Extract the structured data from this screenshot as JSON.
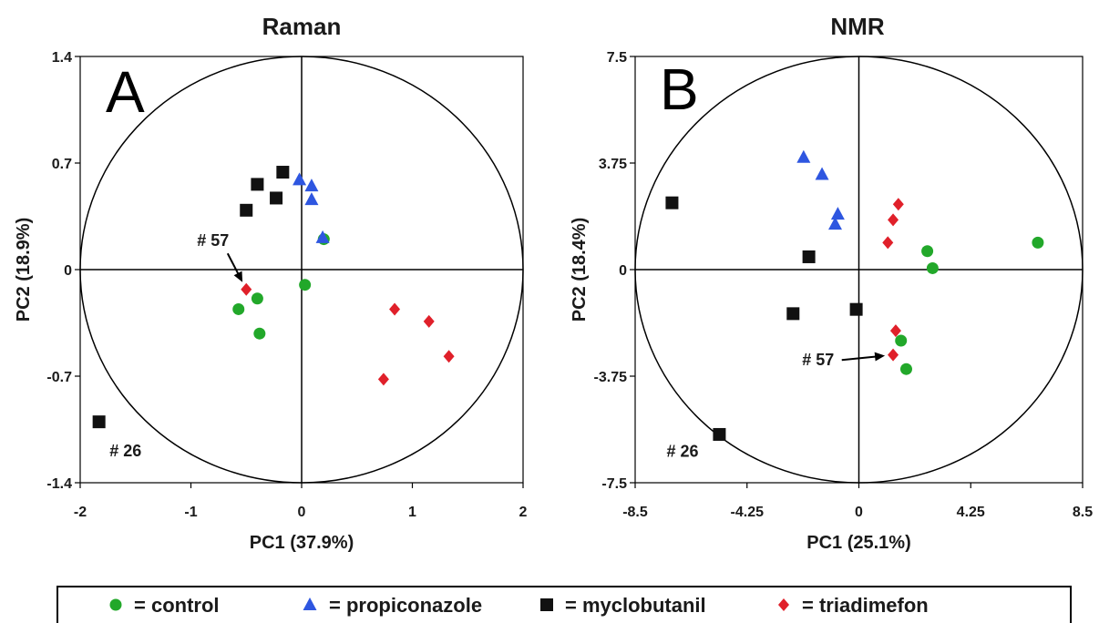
{
  "colors": {
    "control": "#22a82a",
    "propiconazole": "#2e56e0",
    "myclobutanil": "#111111",
    "triadimefon": "#e0202a"
  },
  "legend": {
    "position": "bottom",
    "entries": [
      {
        "key": "control",
        "label": "= control",
        "marker": "circle"
      },
      {
        "key": "propiconazole",
        "label": "= propiconazole",
        "marker": "triangle"
      },
      {
        "key": "myclobutanil",
        "label": "= myclobutanil",
        "marker": "square"
      },
      {
        "key": "triadimefon",
        "label": "= triadimefon",
        "marker": "diamond"
      }
    ]
  },
  "chart_data": [
    {
      "type": "scatter",
      "title": "Raman",
      "panel_label": "A",
      "xlabel": "PC1 (37.9%)",
      "ylabel": "PC2 (18.9%)",
      "xlim": [
        -2,
        2
      ],
      "ylim": [
        -1.4,
        1.4
      ],
      "xticks": [
        -2,
        -1,
        0,
        1,
        2
      ],
      "xtick_labels": [
        "-2",
        "-1",
        "0",
        "1",
        "2"
      ],
      "yticks": [
        -1.4,
        -0.7,
        0,
        0.7,
        1.4
      ],
      "ytick_labels": [
        "-1.4",
        "-0.7",
        "0",
        "0.7",
        "1.4"
      ],
      "circle_radius": 2,
      "series": [
        {
          "key": "control",
          "points": [
            [
              -0.57,
              -0.26
            ],
            [
              -0.4,
              -0.19
            ],
            [
              -0.38,
              -0.42
            ],
            [
              0.03,
              -0.1
            ],
            [
              0.2,
              0.2
            ]
          ]
        },
        {
          "key": "propiconazole",
          "points": [
            [
              -0.02,
              0.59
            ],
            [
              0.09,
              0.55
            ],
            [
              0.09,
              0.46
            ],
            [
              0.19,
              0.21
            ]
          ]
        },
        {
          "key": "myclobutanil",
          "points": [
            [
              -0.17,
              0.64
            ],
            [
              -0.4,
              0.56
            ],
            [
              -0.23,
              0.47
            ],
            [
              -0.5,
              0.39
            ],
            [
              -1.83,
              -1.0
            ]
          ]
        },
        {
          "key": "triadimefon",
          "points": [
            [
              -0.5,
              -0.13
            ],
            [
              0.84,
              -0.26
            ],
            [
              1.15,
              -0.34
            ],
            [
              1.33,
              -0.57
            ],
            [
              0.74,
              -0.72
            ]
          ]
        }
      ],
      "annotations": [
        {
          "text": "# 57",
          "target": [
            -0.5,
            -0.13
          ],
          "label_at": [
            -0.8,
            0.19
          ]
        },
        {
          "text": "# 26",
          "target": [
            -1.83,
            -1.0
          ],
          "label_at": [
            -1.59,
            -1.19
          ]
        }
      ]
    },
    {
      "type": "scatter",
      "title": "NMR",
      "panel_label": "B",
      "xlabel": "PC1 (25.1%)",
      "ylabel": "PC2 (18.4%)",
      "xlim": [
        -8.5,
        8.5
      ],
      "ylim": [
        -7.5,
        7.5
      ],
      "xticks": [
        -8.5,
        -4.25,
        0,
        4.25,
        8.5
      ],
      "xtick_labels": [
        "-8.5",
        "-4.25",
        "0",
        "4.25",
        "8.5"
      ],
      "yticks": [
        -7.5,
        -3.75,
        0,
        3.75,
        7.5
      ],
      "ytick_labels": [
        "-7.5",
        "-3.75",
        "0",
        "3.75",
        "7.5"
      ],
      "circle_radius": 8.5,
      "series": [
        {
          "key": "control",
          "points": [
            [
              2.6,
              0.65
            ],
            [
              2.8,
              0.05
            ],
            [
              6.8,
              0.95
            ],
            [
              1.6,
              -2.5
            ],
            [
              1.8,
              -3.5
            ]
          ]
        },
        {
          "key": "propiconazole",
          "points": [
            [
              -2.1,
              3.95
            ],
            [
              -1.4,
              3.35
            ],
            [
              -0.8,
              1.95
            ],
            [
              -0.9,
              1.6
            ]
          ]
        },
        {
          "key": "myclobutanil",
          "points": [
            [
              -7.1,
              2.35
            ],
            [
              -1.9,
              0.45
            ],
            [
              -2.5,
              -1.55
            ],
            [
              -0.1,
              -1.4
            ],
            [
              -5.3,
              -5.8
            ]
          ]
        },
        {
          "key": "triadimefon",
          "points": [
            [
              1.5,
              2.3
            ],
            [
              1.3,
              1.75
            ],
            [
              1.1,
              0.95
            ],
            [
              1.4,
              -2.15
            ],
            [
              1.3,
              -3.0
            ]
          ]
        }
      ],
      "annotations": [
        {
          "text": "# 57",
          "target": [
            1.3,
            -3.0
          ],
          "label_at": [
            -1.55,
            -3.18
          ]
        },
        {
          "text": "# 26",
          "target": [
            -5.3,
            -5.8
          ],
          "label_at": [
            -6.7,
            -6.4
          ]
        }
      ]
    }
  ]
}
